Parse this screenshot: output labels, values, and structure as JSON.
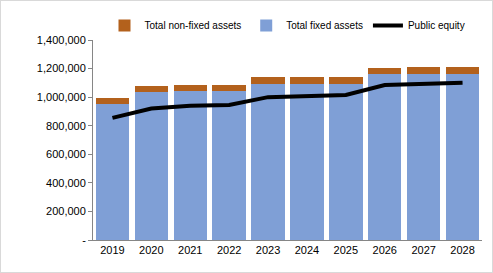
{
  "chart_data": {
    "type": "bar",
    "stacked": true,
    "grid": false,
    "legend": "top",
    "categories": [
      "2019",
      "2020",
      "2021",
      "2022",
      "2023",
      "2024",
      "2025",
      "2026",
      "2027",
      "2028"
    ],
    "series": [
      {
        "name": "Total non-fixed assets",
        "type": "bar",
        "color": "#b3611c",
        "values": [
          40000,
          42000,
          42000,
          42000,
          45000,
          45000,
          45000,
          45000,
          45000,
          45000
        ]
      },
      {
        "name": "Total fixed assets",
        "type": "bar",
        "color": "#7f9fd6",
        "values": [
          955000,
          1033000,
          1043000,
          1043000,
          1095000,
          1095000,
          1095000,
          1160000,
          1165000,
          1165000
        ]
      },
      {
        "name": "Public equity",
        "type": "line",
        "color": "#000000",
        "line_style": "solid",
        "values": [
          855000,
          920000,
          940000,
          945000,
          1000000,
          1010000,
          1015000,
          1085000,
          1095000,
          1100000
        ]
      }
    ],
    "ylim": [
      0,
      1400000
    ],
    "yticks": [
      {
        "value": 0,
        "label": "-"
      },
      {
        "value": 200000,
        "label": "200,000"
      },
      {
        "value": 400000,
        "label": "400,000"
      },
      {
        "value": 600000,
        "label": "600,000"
      },
      {
        "value": 800000,
        "label": "800,000"
      },
      {
        "value": 1000000,
        "label": "1,000,000"
      },
      {
        "value": 1200000,
        "label": "1,200,000"
      },
      {
        "value": 1400000,
        "label": "1,400,000"
      }
    ]
  }
}
